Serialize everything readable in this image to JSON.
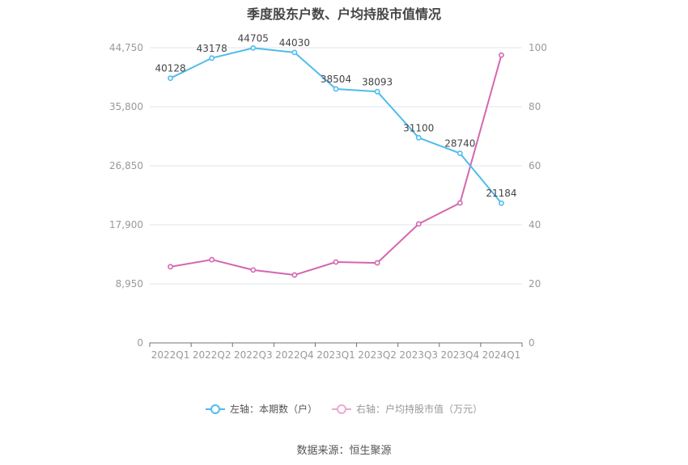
{
  "title": "季度股东户数、户均持股市值情况",
  "source": "数据来源：恒生聚源",
  "legend": {
    "left_label": "左轴：本期数（户）",
    "right_label": "右轴：户均持股市值（万元）"
  },
  "colors": {
    "left_series": "#4fbcec",
    "right_series": "#d466b0",
    "grid": "#e0e6f1",
    "axis_text": "#999999",
    "label_text": "#444444"
  },
  "chart_data": {
    "type": "line",
    "title": "季度股东户数、户均持股市值情况",
    "categories": [
      "2022Q1",
      "2022Q2",
      "2022Q3",
      "2022Q4",
      "2023Q1",
      "2023Q2",
      "2023Q3",
      "2023Q4",
      "2024Q1"
    ],
    "series": [
      {
        "name": "左轴：本期数（户）",
        "axis": "left",
        "values": [
          40128,
          43178,
          44705,
          44030,
          38504,
          38093,
          31100,
          28740,
          21184
        ],
        "data_labels": true
      },
      {
        "name": "右轴：户均持股市值（万元）",
        "axis": "right",
        "values": [
          25.8,
          28.2,
          24.7,
          23.0,
          27.4,
          27.1,
          40.3,
          47.4,
          97.5
        ],
        "data_labels": false
      }
    ],
    "left_axis": {
      "ticks": [
        "0",
        "8,950",
        "17,900",
        "26,850",
        "35,800",
        "44,750"
      ],
      "ylim": [
        0,
        44750
      ]
    },
    "right_axis": {
      "ticks": [
        "0",
        "20",
        "40",
        "60",
        "80",
        "100"
      ],
      "ylim": [
        0,
        100
      ]
    },
    "xlabel": "",
    "ylabel": "",
    "grid": true,
    "legend_position": "bottom"
  }
}
